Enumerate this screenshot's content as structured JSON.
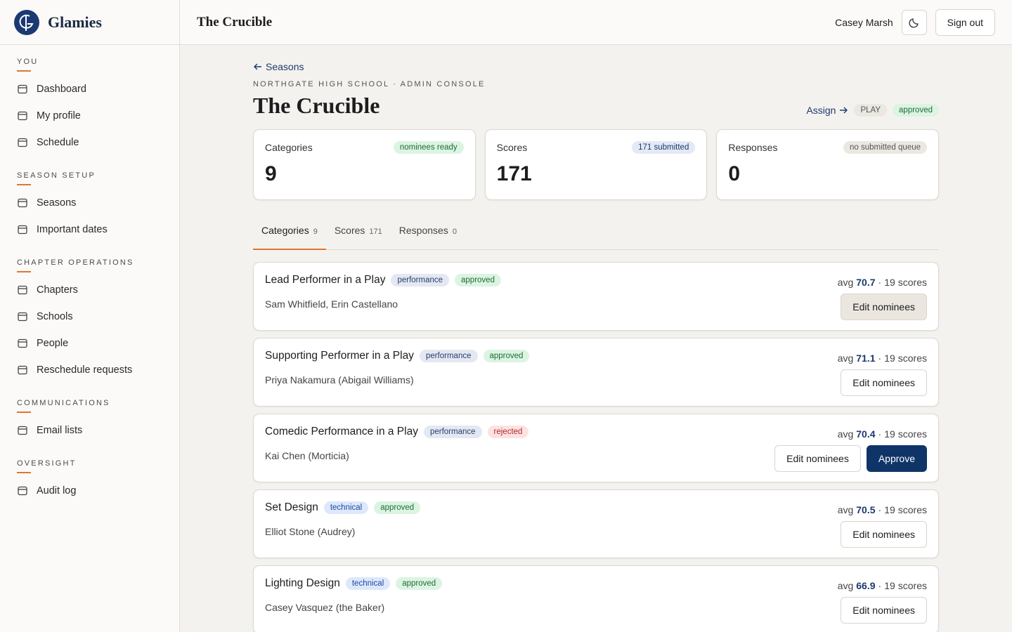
{
  "sidebar": {
    "brand": "Glamies",
    "sections": [
      {
        "title": "YOU",
        "items": [
          "Dashboard",
          "My profile",
          "Schedule"
        ]
      },
      {
        "title": "SEASON SETUP",
        "items": [
          "Seasons",
          "Important dates"
        ]
      },
      {
        "title": "CHAPTER OPERATIONS",
        "items": [
          "Chapters",
          "Schools",
          "People",
          "Reschedule requests"
        ]
      },
      {
        "title": "COMMUNICATIONS",
        "items": [
          "Email lists"
        ]
      },
      {
        "title": "OVERSIGHT",
        "items": [
          "Audit log"
        ]
      }
    ]
  },
  "topbar": {
    "title": "The Crucible",
    "user": "Casey Marsh",
    "sign_out": "Sign out"
  },
  "page": {
    "back": "Seasons",
    "eyebrow": "NORTHGATE HIGH SCHOOL · ADMIN CONSOLE",
    "title": "The Crucible",
    "assign": "Assign",
    "type_badge": "PLAY",
    "status_badge": "approved"
  },
  "stats": [
    {
      "label": "Categories",
      "badge": "nominees ready",
      "value": 9
    },
    {
      "label": "Scores",
      "badge": "171 submitted",
      "value": 171
    },
    {
      "label": "Responses",
      "badge": "no submitted queue",
      "value": 0
    }
  ],
  "tabs": [
    {
      "label": "Categories",
      "count": 9
    },
    {
      "label": "Scores",
      "count": 171
    },
    {
      "label": "Responses",
      "count": 0
    }
  ],
  "categories": {
    "avg_label": "avg",
    "separator": "·",
    "scores_label": "scores",
    "rows": [
      {
        "name": "Lead Performer in a Play",
        "kind": "performance",
        "status": "approved",
        "nominees": "Sam Whitfield, Erin Castellano",
        "avg": 70.7,
        "scores": 19,
        "actions": [
          "Edit nominees"
        ]
      },
      {
        "name": "Supporting Performer in a Play",
        "kind": "performance",
        "status": "approved",
        "nominees": "Priya Nakamura (Abigail Williams)",
        "avg": 71.1,
        "scores": 19,
        "actions": [
          "Edit nominees"
        ]
      },
      {
        "name": "Comedic Performance in a Play",
        "kind": "performance",
        "status": "rejected",
        "nominees": "Kai Chen (Morticia)",
        "avg": 70.4,
        "scores": 19,
        "actions": [
          "Edit nominees",
          "Approve"
        ]
      },
      {
        "name": "Set Design",
        "kind": "technical",
        "status": "approved",
        "nominees": "Elliot Stone (Audrey)",
        "avg": 70.5,
        "scores": 19,
        "actions": [
          "Edit nominees"
        ]
      },
      {
        "name": "Lighting Design",
        "kind": "technical",
        "status": "approved",
        "nominees": "Casey Vasquez (the Baker)",
        "avg": 66.9,
        "scores": 19,
        "actions": [
          "Edit nominees"
        ]
      }
    ]
  }
}
